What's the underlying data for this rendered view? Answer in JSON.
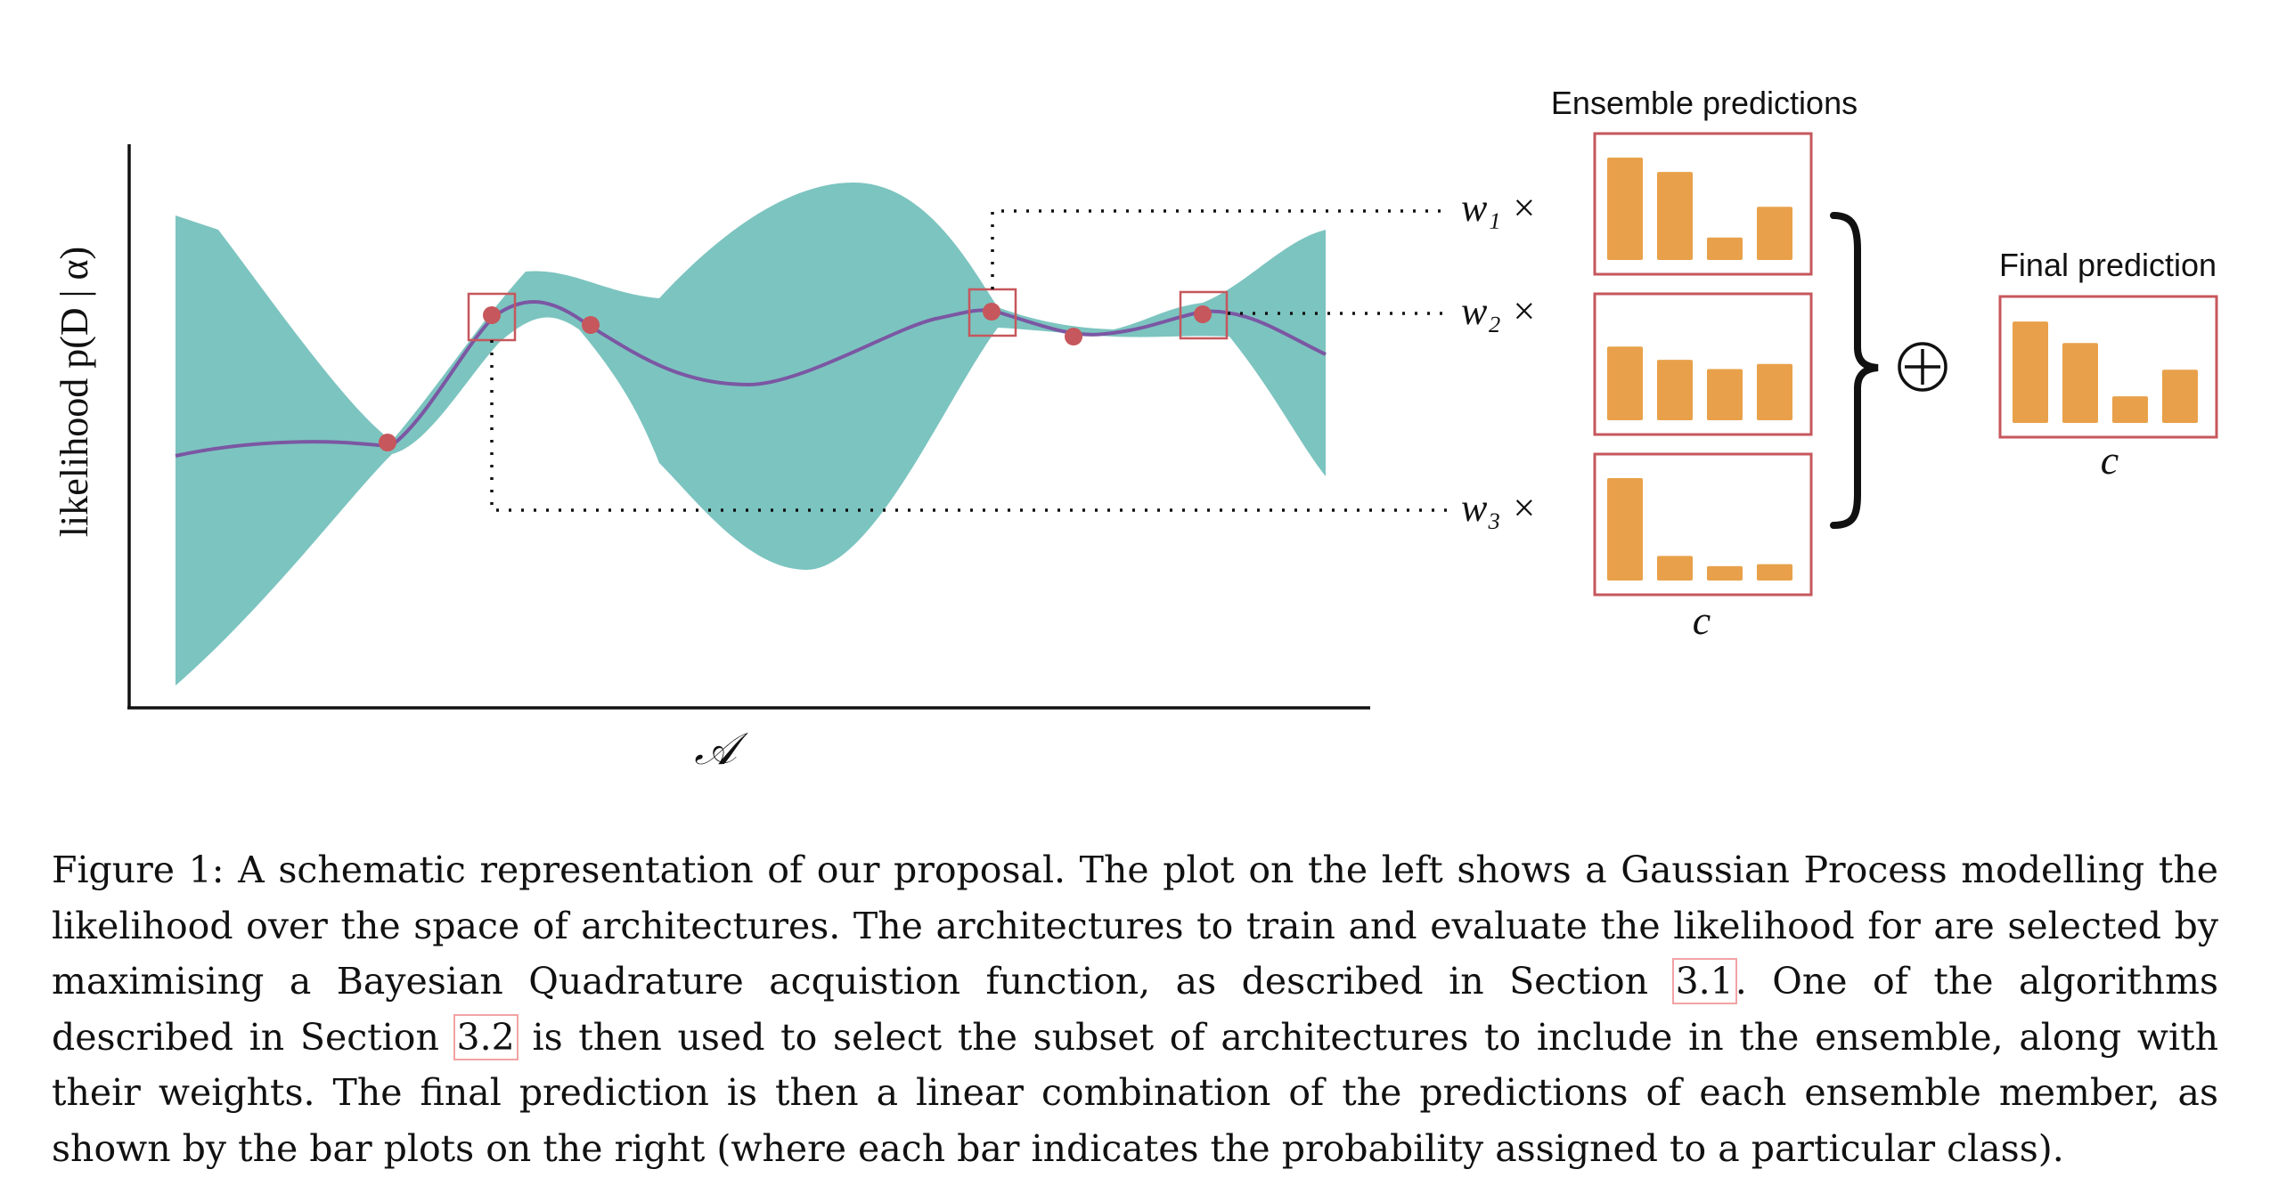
{
  "figure": {
    "y_axis_label": "likelihood p(D | α)",
    "x_axis_label": "𝒜",
    "ensemble_title": "Ensemble predictions",
    "final_title": "Final prediction",
    "class_label": "c",
    "weights": [
      "w₁ ×",
      "w₂ ×",
      "w₃ ×"
    ],
    "oplus": "⊕",
    "colors": {
      "gp_band": "#7cc4c0",
      "mean_line": "#7b57a3",
      "points": "#c6575c",
      "box": "#c6575c",
      "bars": "#e8a14a"
    },
    "ensemble_bars": [
      [
        1.0,
        0.86,
        0.22,
        0.52
      ],
      [
        0.72,
        0.59,
        0.5,
        0.55
      ],
      [
        1.0,
        0.24,
        0.14,
        0.16
      ]
    ],
    "final_bars": [
      0.99,
      0.78,
      0.26,
      0.52
    ]
  },
  "caption": {
    "lead": "Figure 1:  A schematic representation of our proposal.  The plot on the left shows a Gaussian Process modelling the likelihood over the space of architectures. The architectures to train and evaluate the likelihood for are selected by maximising a Bayesian Quadrature acquistion function, as described in Section ",
    "ref1": "3.1",
    "mid": ". One of the algorithms described in Section ",
    "ref2": "3.2",
    "tail": " is then used to select the subset of architectures to include in the ensemble, along with their weights. The final prediction is then a linear combination of the predictions of each ensemble member, as shown by the bar plots on the right (where each bar indicates the probability assigned to a particular class)."
  }
}
